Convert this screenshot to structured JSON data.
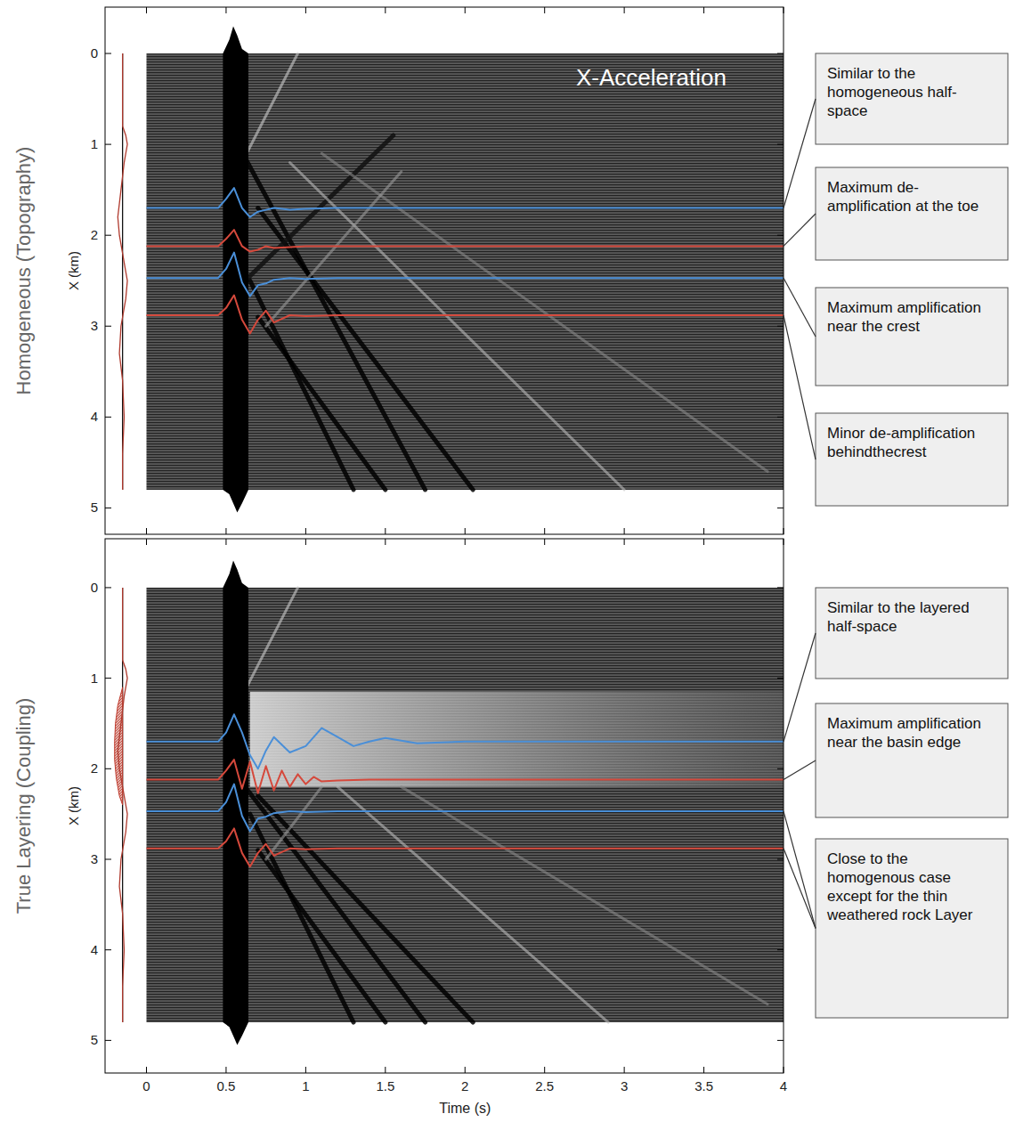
{
  "chart_data": [
    {
      "type": "wiggle",
      "panel_label": "Homogeneous (Topography)",
      "title": "X-Acceleration",
      "y_label": "X (km)",
      "tick_labels": "y",
      "xlim": [
        -0.26,
        4.0
      ],
      "ylim": [
        -0.51,
        5.29
      ],
      "xticks": [
        0,
        0.5,
        1,
        1.5,
        2,
        2.5,
        3,
        3.5,
        4
      ],
      "yticks": [
        0,
        1,
        2,
        3,
        4,
        5
      ],
      "traces": {
        "t": [
          0,
          4
        ],
        "x": [
          0,
          4.8
        ]
      },
      "direct_wave": {
        "t": [
          0.48,
          0.52,
          0.545,
          0.57,
          0.6,
          0.64
        ],
        "x_top": [
          0,
          -0.15,
          -0.3,
          -0.2,
          -0.05,
          0
        ],
        "x_bottom": [
          4.8,
          4.85,
          4.95,
          5.05,
          4.95,
          4.8
        ]
      },
      "wavefronts": [
        {
          "t": [
            0.62,
            1.75
          ],
          "x": [
            1.15,
            4.8
          ],
          "color": "#000000"
        },
        {
          "t": [
            0.7,
            2.05
          ],
          "x": [
            1.7,
            4.8
          ],
          "color": "#000000"
        },
        {
          "t": [
            0.65,
            1.3
          ],
          "x": [
            2.5,
            4.8
          ],
          "color": "#000000"
        },
        {
          "t": [
            0.7,
            1.5
          ],
          "x": [
            2.9,
            4.8
          ],
          "color": "#000000"
        },
        {
          "t": [
            0.62,
            1.55
          ],
          "x": [
            2.5,
            0.9
          ],
          "color": "#111111"
        },
        {
          "t": [
            0.9,
            3.0
          ],
          "x": [
            1.2,
            4.8
          ],
          "color": "#bbbbbb"
        },
        {
          "t": [
            0.6,
            0.95
          ],
          "x": [
            1.2,
            0.0
          ],
          "color": "#cccccc"
        },
        {
          "t": [
            1.1,
            3.9
          ],
          "x": [
            1.1,
            4.6
          ],
          "color": "#888888"
        },
        {
          "t": [
            0.75,
            1.6
          ],
          "x": [
            3.0,
            1.3
          ],
          "color": "#999999"
        }
      ],
      "profile": {
        "t0": -0.15,
        "color": "#b03a2e",
        "x": [
          0,
          0.8,
          0.9,
          1.0,
          1.2,
          1.5,
          1.8,
          2.0,
          2.2,
          2.4,
          2.5,
          2.7,
          3.0,
          3.3,
          3.6,
          4.0,
          4.4,
          4.8
        ],
        "values": [
          0,
          0,
          0.02,
          0.03,
          0.01,
          -0.01,
          -0.03,
          -0.02,
          0,
          0.02,
          0.03,
          0.02,
          -0.01,
          -0.02,
          0,
          0.01,
          0,
          0
        ]
      },
      "series": [
        {
          "color": "#4a8fd8",
          "offset": 1.7,
          "t": [
            0,
            0.45,
            0.5,
            0.55,
            0.6,
            0.65,
            0.7,
            0.75,
            0.8,
            0.9,
            1.0,
            1.2,
            4
          ],
          "values": [
            0,
            0,
            -0.1,
            -0.22,
            0,
            0.1,
            0.04,
            0.02,
            0,
            0.02,
            0.01,
            0,
            0
          ]
        },
        {
          "color": "#d5493c",
          "offset": 2.12,
          "t": [
            0,
            0.45,
            0.5,
            0.55,
            0.6,
            0.65,
            0.7,
            0.75,
            0.8,
            0.9,
            1.0,
            1.2,
            4
          ],
          "values": [
            0,
            0,
            -0.08,
            -0.18,
            0,
            0.06,
            0.04,
            0,
            0.02,
            0.01,
            0,
            0,
            0
          ]
        },
        {
          "color": "#4a8fd8",
          "offset": 2.47,
          "t": [
            0,
            0.45,
            0.5,
            0.55,
            0.6,
            0.65,
            0.7,
            0.75,
            0.8,
            0.9,
            1.0,
            1.2,
            4
          ],
          "values": [
            0,
            0,
            -0.1,
            -0.28,
            0.05,
            0.2,
            0.08,
            0.06,
            0.02,
            0,
            0.01,
            0,
            0
          ]
        },
        {
          "color": "#d5493c",
          "offset": 2.88,
          "t": [
            0,
            0.45,
            0.5,
            0.55,
            0.6,
            0.65,
            0.7,
            0.75,
            0.8,
            0.9,
            1.0,
            1.2,
            4
          ],
          "values": [
            0,
            0,
            -0.08,
            -0.22,
            0.05,
            0.2,
            0.05,
            -0.05,
            0.08,
            0,
            0.01,
            0,
            0
          ]
        }
      ],
      "annotations": [
        {
          "text": "Similar to the homogeneous half-space",
          "targets": [
            1.7
          ]
        },
        {
          "text": "Maximum de-amplification at the toe",
          "targets": [
            2.12
          ]
        },
        {
          "text": "Maximum amplification near the crest",
          "targets": [
            2.47
          ]
        },
        {
          "text": "Minor de-amplification behindthecrest",
          "targets": [
            2.88
          ]
        }
      ]
    },
    {
      "type": "wiggle",
      "panel_label": "True Layering (Coupling)",
      "y_label": "X (km)",
      "x_label": "Time (s)",
      "xlim": [
        -0.26,
        4.0
      ],
      "ylim": [
        -0.54,
        5.36
      ],
      "xticks": [
        0,
        0.5,
        1,
        1.5,
        2,
        2.5,
        3,
        3.5,
        4
      ],
      "yticks": [
        0,
        1,
        2,
        3,
        4,
        5
      ],
      "traces": {
        "t": [
          0,
          4
        ],
        "x": [
          0,
          4.8
        ]
      },
      "direct_wave": {
        "t": [
          0.48,
          0.52,
          0.545,
          0.57,
          0.6,
          0.64
        ],
        "x_top": [
          0,
          -0.15,
          -0.3,
          -0.2,
          -0.05,
          0
        ],
        "x_bottom": [
          4.8,
          4.85,
          4.95,
          5.05,
          4.95,
          4.8
        ]
      },
      "basin_response": {
        "t": [
          0.65,
          4
        ],
        "x": [
          1.15,
          2.2
        ]
      },
      "wavefronts": [
        {
          "t": [
            0.62,
            1.75
          ],
          "x": [
            2.2,
            4.8
          ],
          "color": "#000000"
        },
        {
          "t": [
            0.7,
            2.05
          ],
          "x": [
            2.3,
            4.8
          ],
          "color": "#000000"
        },
        {
          "t": [
            0.65,
            1.3
          ],
          "x": [
            2.5,
            4.8
          ],
          "color": "#000000"
        },
        {
          "t": [
            0.7,
            1.5
          ],
          "x": [
            2.9,
            4.8
          ],
          "color": "#000000"
        },
        {
          "t": [
            1.2,
            2.9
          ],
          "x": [
            2.2,
            4.8
          ],
          "color": "#bbbbbb"
        },
        {
          "t": [
            0.6,
            0.95
          ],
          "x": [
            1.2,
            0.0
          ],
          "color": "#cccccc"
        },
        {
          "t": [
            1.6,
            3.9
          ],
          "x": [
            2.2,
            4.6
          ],
          "color": "#888888"
        },
        {
          "t": [
            0.75,
            1.1
          ],
          "x": [
            3.0,
            2.2
          ],
          "color": "#999999"
        }
      ],
      "profile": {
        "t0": -0.15,
        "color": "#b03a2e",
        "x": [
          0,
          0.8,
          0.9,
          1.0,
          1.2,
          1.5,
          1.8,
          2.0,
          2.2,
          2.4,
          2.5,
          2.7,
          3.0,
          3.3,
          3.6,
          4.0,
          4.4,
          4.8
        ],
        "values": [
          0,
          0,
          0.02,
          0.03,
          0.01,
          -0.01,
          -0.03,
          -0.02,
          0,
          0.02,
          0.03,
          0.02,
          -0.01,
          -0.02,
          0,
          0.01,
          0,
          0
        ]
      },
      "basin": {
        "color": "#c0392b",
        "x": [
          1.1,
          1.3,
          1.5,
          1.7,
          1.9,
          2.1,
          2.3,
          2.4
        ],
        "values": [
          0,
          -0.03,
          -0.045,
          -0.05,
          -0.05,
          -0.04,
          -0.02,
          0
        ]
      },
      "series": [
        {
          "color": "#4a8fd8",
          "offset": 1.7,
          "t": [
            0,
            0.45,
            0.5,
            0.55,
            0.6,
            0.65,
            0.7,
            0.75,
            0.8,
            0.9,
            1.0,
            1.1,
            1.2,
            1.3,
            1.4,
            1.5,
            1.7,
            2.0,
            4
          ],
          "values": [
            0,
            0,
            -0.1,
            -0.3,
            -0.1,
            0.15,
            0.3,
            0.1,
            -0.05,
            0.12,
            0.05,
            -0.15,
            -0.05,
            0.05,
            0,
            -0.04,
            0.02,
            0,
            0
          ]
        },
        {
          "color": "#d5493c",
          "offset": 2.12,
          "t": [
            0,
            0.45,
            0.5,
            0.55,
            0.6,
            0.65,
            0.7,
            0.75,
            0.8,
            0.85,
            0.9,
            0.95,
            1.0,
            1.05,
            1.1,
            1.2,
            1.4,
            4
          ],
          "values": [
            0,
            0,
            -0.1,
            -0.22,
            0.1,
            -0.2,
            0.15,
            -0.15,
            0.12,
            -0.1,
            0.08,
            -0.06,
            0.05,
            -0.03,
            0.02,
            0.01,
            0,
            0
          ]
        },
        {
          "color": "#4a8fd8",
          "offset": 2.47,
          "t": [
            0,
            0.45,
            0.5,
            0.55,
            0.6,
            0.65,
            0.7,
            0.75,
            0.8,
            0.9,
            1.0,
            1.2,
            4
          ],
          "values": [
            0,
            0,
            -0.1,
            -0.3,
            0.05,
            0.22,
            0.08,
            0.06,
            0.02,
            0,
            0.01,
            0,
            0
          ]
        },
        {
          "color": "#d5493c",
          "offset": 2.88,
          "t": [
            0,
            0.45,
            0.5,
            0.55,
            0.6,
            0.65,
            0.7,
            0.75,
            0.8,
            0.9,
            1.0,
            1.2,
            4
          ],
          "values": [
            0,
            0,
            -0.08,
            -0.22,
            0.05,
            0.2,
            0.05,
            -0.05,
            0.08,
            0,
            0.01,
            0,
            0
          ]
        }
      ],
      "annotations": [
        {
          "text": "Similar to the layered half-space",
          "targets": [
            1.7
          ]
        },
        {
          "text": "Maximum amplification near the basin edge",
          "targets": [
            2.12
          ]
        },
        {
          "text": "Close to the homogenous case except for the thin weathered rock Layer",
          "targets": [
            2.47,
            2.88
          ]
        }
      ]
    }
  ]
}
